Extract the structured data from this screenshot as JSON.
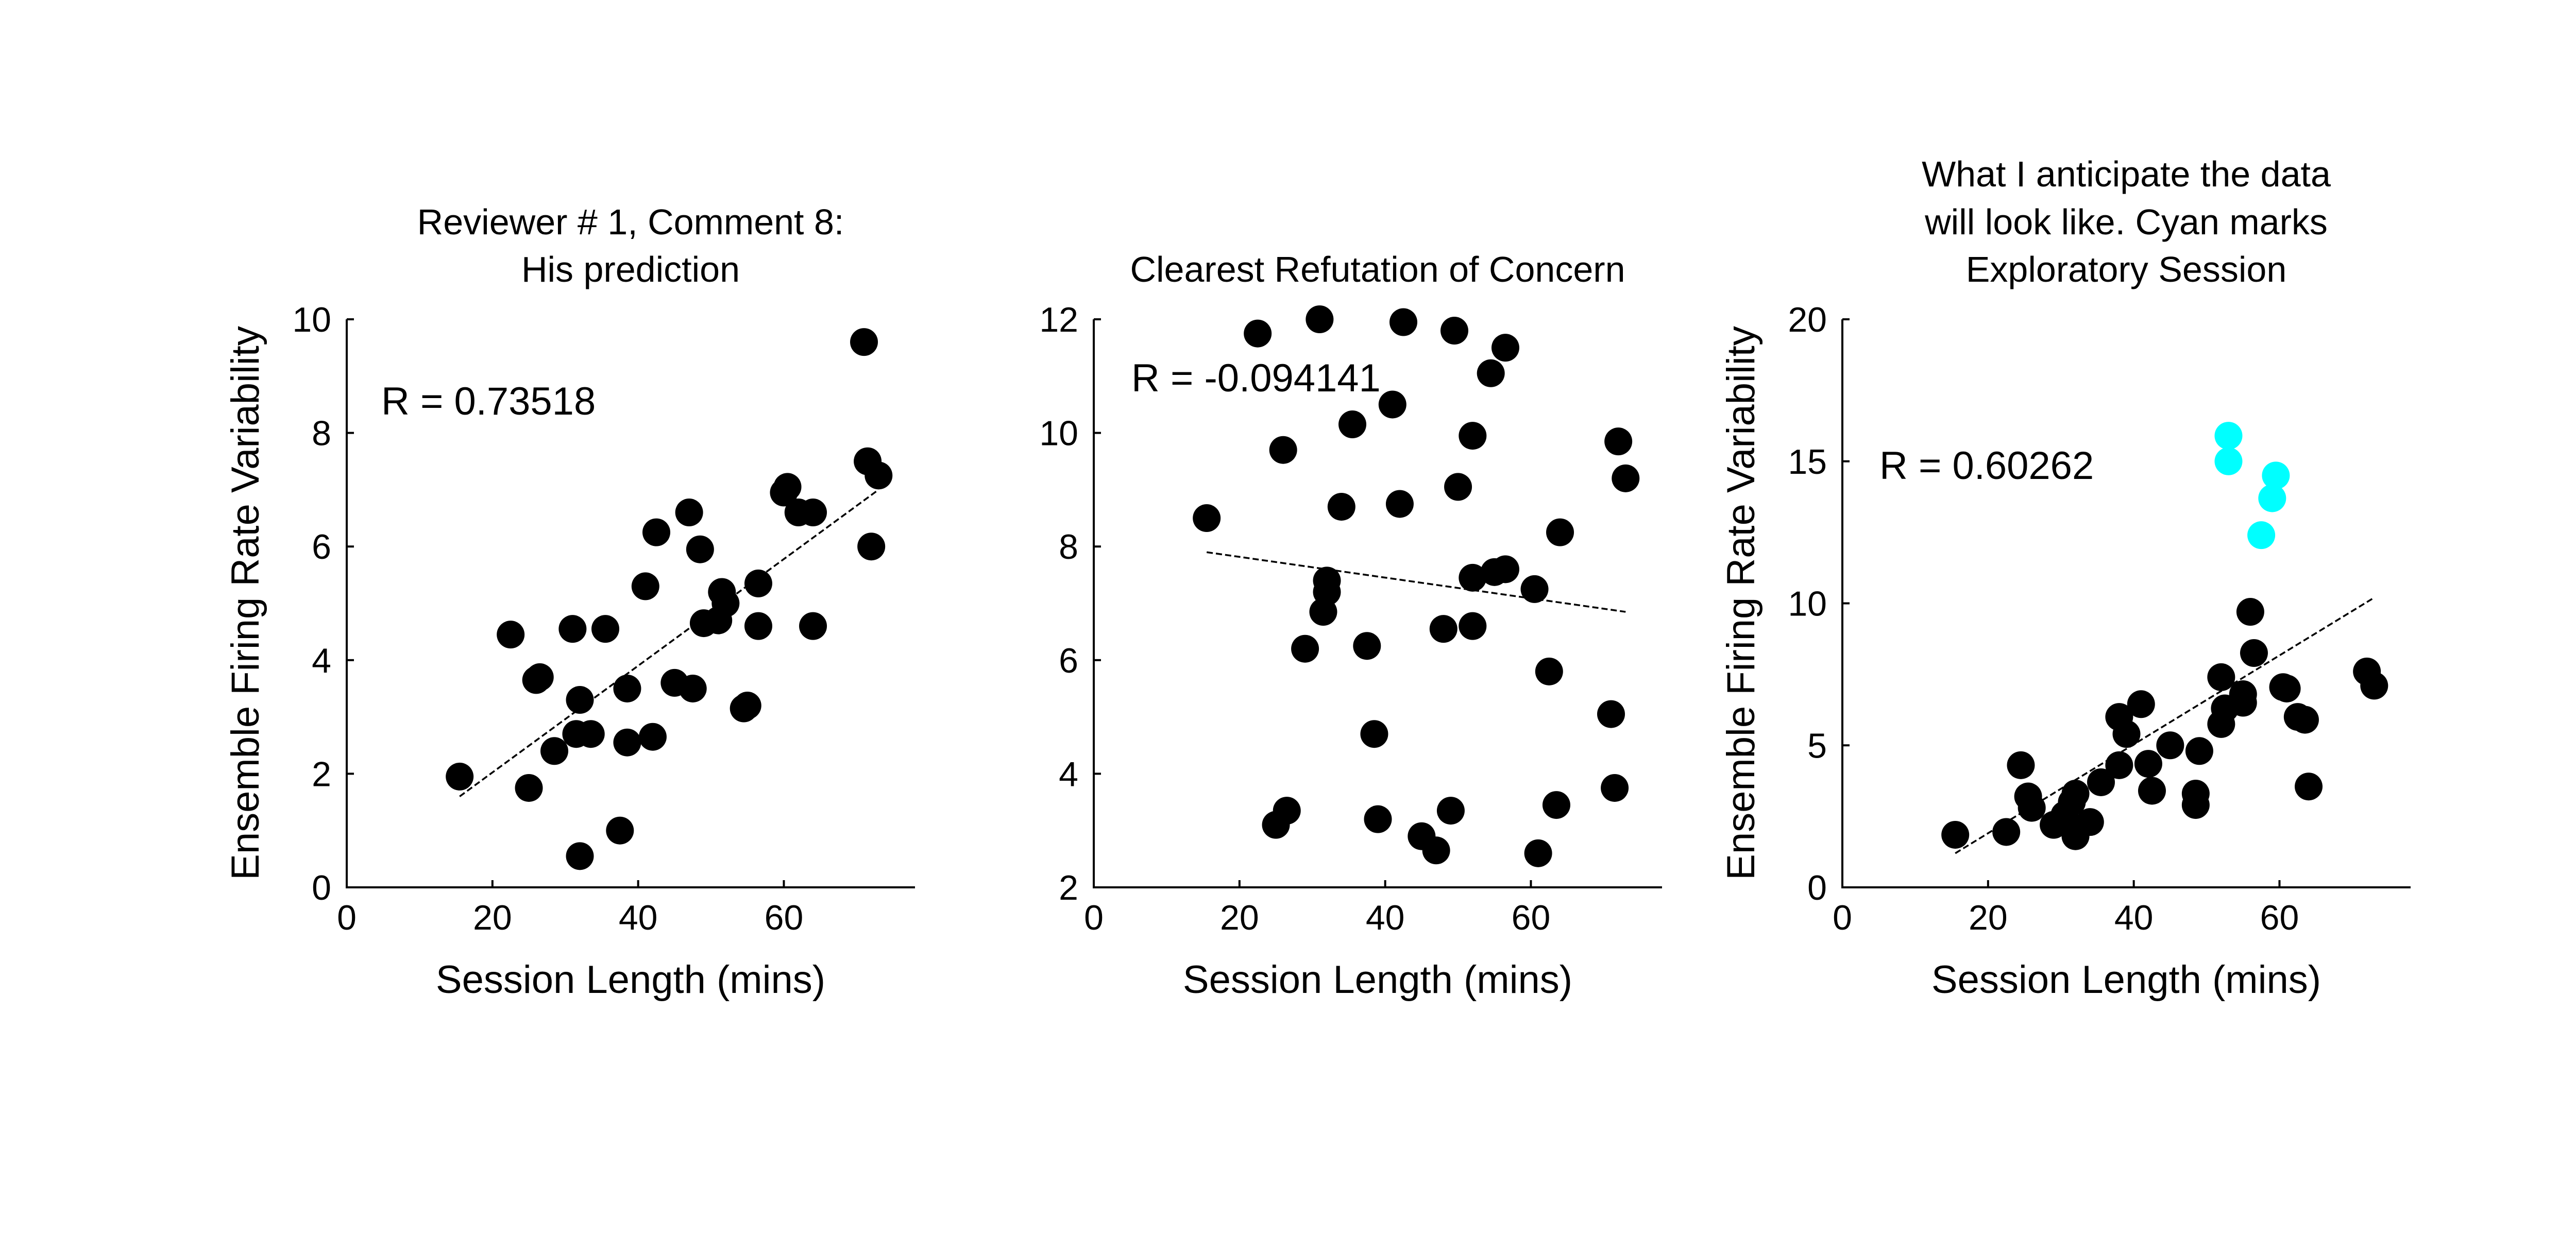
{
  "chart_data": [
    {
      "type": "scatter",
      "title": [
        "Reviewer # 1, Comment 8:",
        "His prediction"
      ],
      "xlabel": "Session Length (mins)",
      "ylabel": "Ensemble Firing Rate Variability",
      "xlim": [
        0,
        78
      ],
      "ylim": [
        0,
        10
      ],
      "xticks": [
        0,
        20,
        40,
        60
      ],
      "yticks": [
        0,
        2,
        4,
        6,
        8,
        10
      ],
      "annotation": "R = 0.73518",
      "fit_line": {
        "x": [
          15.5,
          73
        ],
        "y": [
          1.6,
          7.0
        ]
      },
      "series": [
        {
          "color": "#000000",
          "points": [
            [
              15.5,
              1.95
            ],
            [
              22.5,
              4.45
            ],
            [
              25,
              1.75
            ],
            [
              26,
              3.65
            ],
            [
              26.5,
              3.7
            ],
            [
              28.5,
              2.4
            ],
            [
              31,
              4.55
            ],
            [
              31.5,
              2.7
            ],
            [
              32,
              3.3
            ],
            [
              32,
              0.55
            ],
            [
              33.5,
              2.7
            ],
            [
              35.5,
              4.55
            ],
            [
              37.5,
              1.0
            ],
            [
              38.5,
              2.55
            ],
            [
              38.5,
              3.5
            ],
            [
              41,
              5.3
            ],
            [
              42,
              2.65
            ],
            [
              42.5,
              6.25
            ],
            [
              45,
              3.6
            ],
            [
              47,
              6.6
            ],
            [
              47.5,
              3.5
            ],
            [
              48.5,
              5.95
            ],
            [
              49,
              4.65
            ],
            [
              51,
              4.7
            ],
            [
              51.5,
              5.2
            ],
            [
              52,
              5.0
            ],
            [
              54.5,
              3.15
            ],
            [
              55,
              3.2
            ],
            [
              56.5,
              5.35
            ],
            [
              56.5,
              4.6
            ],
            [
              60,
              6.95
            ],
            [
              60.5,
              7.05
            ],
            [
              62,
              6.6
            ],
            [
              64,
              6.6
            ],
            [
              64,
              4.6
            ],
            [
              71,
              9.6
            ],
            [
              71.5,
              7.5
            ],
            [
              72,
              6.0
            ],
            [
              73,
              7.25
            ]
          ]
        }
      ]
    },
    {
      "type": "scatter",
      "title": [
        "Clearest Refutation of Concern"
      ],
      "xlabel": "Session Length (mins)",
      "ylabel": "",
      "xlim": [
        0,
        78
      ],
      "ylim": [
        2,
        12
      ],
      "xticks": [
        0,
        20,
        40,
        60
      ],
      "yticks": [
        2,
        4,
        6,
        8,
        10,
        12
      ],
      "annotation": "R = -0.094141",
      "fit_line": {
        "x": [
          15.5,
          73
        ],
        "y": [
          7.9,
          6.85
        ]
      },
      "series": [
        {
          "color": "#000000",
          "points": [
            [
              15.5,
              8.5
            ],
            [
              22.5,
              11.75
            ],
            [
              25,
              3.1
            ],
            [
              26,
              9.7
            ],
            [
              26.5,
              3.35
            ],
            [
              29,
              6.2
            ],
            [
              31,
              12.0
            ],
            [
              31.5,
              6.85
            ],
            [
              32,
              7.4
            ],
            [
              32,
              7.2
            ],
            [
              34,
              8.7
            ],
            [
              35.5,
              10.15
            ],
            [
              37.5,
              6.25
            ],
            [
              38.5,
              4.7
            ],
            [
              39,
              3.2
            ],
            [
              41,
              10.5
            ],
            [
              42,
              8.75
            ],
            [
              42.5,
              11.95
            ],
            [
              45,
              2.9
            ],
            [
              47,
              2.65
            ],
            [
              48,
              6.55
            ],
            [
              49,
              3.35
            ],
            [
              49.5,
              11.8
            ],
            [
              50,
              9.05
            ],
            [
              52,
              9.95
            ],
            [
              52,
              7.45
            ],
            [
              52,
              6.6
            ],
            [
              54.5,
              11.05
            ],
            [
              55,
              7.55
            ],
            [
              56.5,
              11.5
            ],
            [
              56.5,
              7.6
            ],
            [
              60.5,
              7.25
            ],
            [
              61,
              2.6
            ],
            [
              62.5,
              5.8
            ],
            [
              63.5,
              3.45
            ],
            [
              64,
              8.25
            ],
            [
              71,
              5.05
            ],
            [
              71.5,
              3.75
            ],
            [
              72,
              9.85
            ],
            [
              73,
              9.2
            ]
          ]
        }
      ]
    },
    {
      "type": "scatter",
      "title": [
        "What I anticipate the data",
        "will look like. Cyan marks",
        "Exploratory Session"
      ],
      "xlabel": "Session Length (mins)",
      "ylabel": "Ensemble Firing Rate Variability",
      "xlim": [
        0,
        78
      ],
      "ylim": [
        0,
        20
      ],
      "xticks": [
        0,
        20,
        40,
        60
      ],
      "yticks": [
        0,
        5,
        10,
        15,
        20
      ],
      "annotation": "R = 0.60262",
      "fit_line": {
        "x": [
          15.5,
          73
        ],
        "y": [
          1.2,
          10.2
        ]
      },
      "series": [
        {
          "color": "#000000",
          "points": [
            [
              15.5,
              1.85
            ],
            [
              22.5,
              1.95
            ],
            [
              24.5,
              4.3
            ],
            [
              25.5,
              3.2
            ],
            [
              26,
              2.8
            ],
            [
              29,
              2.2
            ],
            [
              30.5,
              2.55
            ],
            [
              31.5,
              3.0
            ],
            [
              32,
              3.3
            ],
            [
              32,
              1.8
            ],
            [
              34,
              2.3
            ],
            [
              35.5,
              3.7
            ],
            [
              38,
              6.0
            ],
            [
              38,
              4.3
            ],
            [
              39,
              5.4
            ],
            [
              41,
              6.45
            ],
            [
              42,
              4.35
            ],
            [
              42.5,
              3.4
            ],
            [
              45,
              5.0
            ],
            [
              48.5,
              2.9
            ],
            [
              48.5,
              3.3
            ],
            [
              49,
              4.8
            ],
            [
              52,
              7.4
            ],
            [
              52,
              5.75
            ],
            [
              52.5,
              6.3
            ],
            [
              55,
              6.5
            ],
            [
              55,
              6.8
            ],
            [
              56,
              9.7
            ],
            [
              56.5,
              8.25
            ],
            [
              60.5,
              7.05
            ],
            [
              61,
              7.0
            ],
            [
              62.5,
              6.0
            ],
            [
              63.5,
              5.9
            ],
            [
              64,
              3.55
            ],
            [
              72,
              7.6
            ],
            [
              73,
              7.1
            ]
          ]
        },
        {
          "color": "#00ffff",
          "points": [
            [
              53,
              15.9
            ],
            [
              53,
              15.0
            ],
            [
              57.5,
              12.4
            ],
            [
              59,
              13.7
            ],
            [
              59.5,
              14.5
            ]
          ]
        }
      ]
    }
  ]
}
